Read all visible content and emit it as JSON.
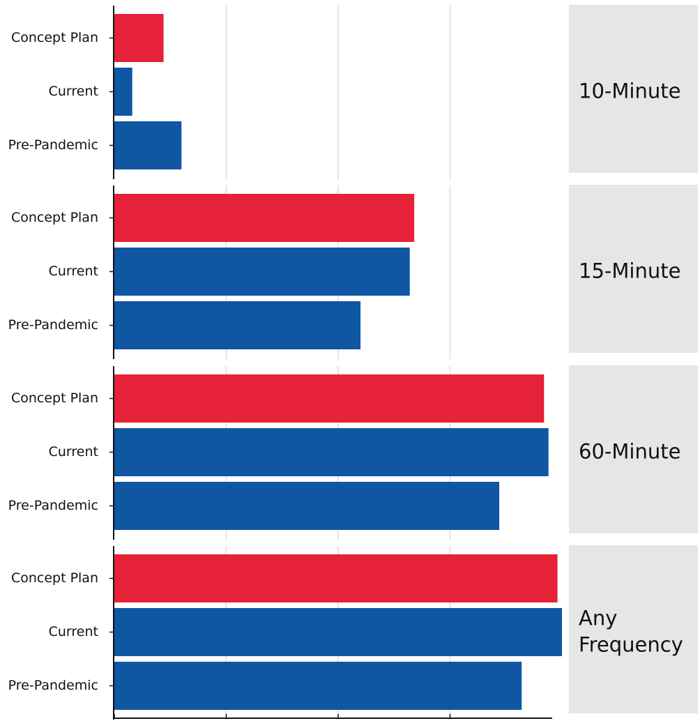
{
  "chart_data": {
    "type": "bar",
    "orientation": "horizontal",
    "title": "",
    "xlabel": "",
    "ylabel": "",
    "xlim": [
      0,
      100
    ],
    "grid": true,
    "legend": "none",
    "categories": [
      "Concept Plan",
      "Current",
      "Pre-Pandemic"
    ],
    "colors": {
      "Concept Plan": "#e52238",
      "Current": "#0f56a3",
      "Pre-Pandemic": "#0f56a3"
    },
    "facets": [
      {
        "label": [
          "10-Minute"
        ],
        "values": [
          11,
          4,
          15
        ]
      },
      {
        "label": [
          "15-Minute"
        ],
        "values": [
          67,
          66,
          55
        ]
      },
      {
        "label": [
          "60-Minute"
        ],
        "values": [
          96,
          97,
          86
        ]
      },
      {
        "label": [
          "Any",
          "Frequency"
        ],
        "values": [
          99,
          100,
          91
        ]
      }
    ]
  }
}
